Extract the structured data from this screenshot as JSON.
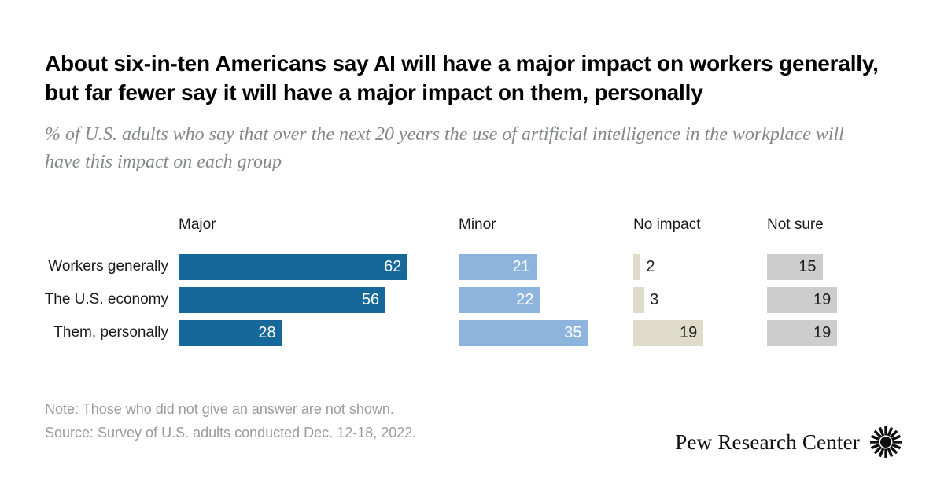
{
  "title": "About six-in-ten Americans say AI will have a major impact on workers generally, but far fewer say it will have a major impact on them, personally",
  "subtitle": "% of U.S. adults who say that over the next 20 years the use of artificial intelligence in the workplace will have this impact on each group",
  "chart_data": {
    "type": "bar",
    "orientation": "horizontal",
    "unit": "% of U.S. adults",
    "categories": [
      "Workers generally",
      "The U.S. economy",
      "Them, personally"
    ],
    "series": [
      {
        "name": "Major",
        "color": "#16679a",
        "label_color": "#ffffff",
        "values": [
          62,
          56,
          28
        ]
      },
      {
        "name": "Minor",
        "color": "#8cb4dd",
        "label_color": "#ffffff",
        "values": [
          21,
          22,
          35
        ]
      },
      {
        "name": "No impact",
        "color": "#dedbc9",
        "label_color": "#1d1d1d",
        "values": [
          2,
          3,
          19
        ]
      },
      {
        "name": "Not sure",
        "color": "#cdcdcd",
        "label_color": "#1d1d1d",
        "values": [
          15,
          19,
          19
        ]
      }
    ],
    "value_range": [
      0,
      62
    ],
    "grid": false,
    "legend_position": "column-headers",
    "value_labels": "inside-right, outside for tiny bars"
  },
  "note": "Note: Those who did not give an answer are not shown.",
  "source": "Source: Survey of U.S. adults conducted Dec. 12-18, 2022.",
  "logo": {
    "text": "Pew Research Center",
    "mark": "pew-sunburst-icon"
  }
}
